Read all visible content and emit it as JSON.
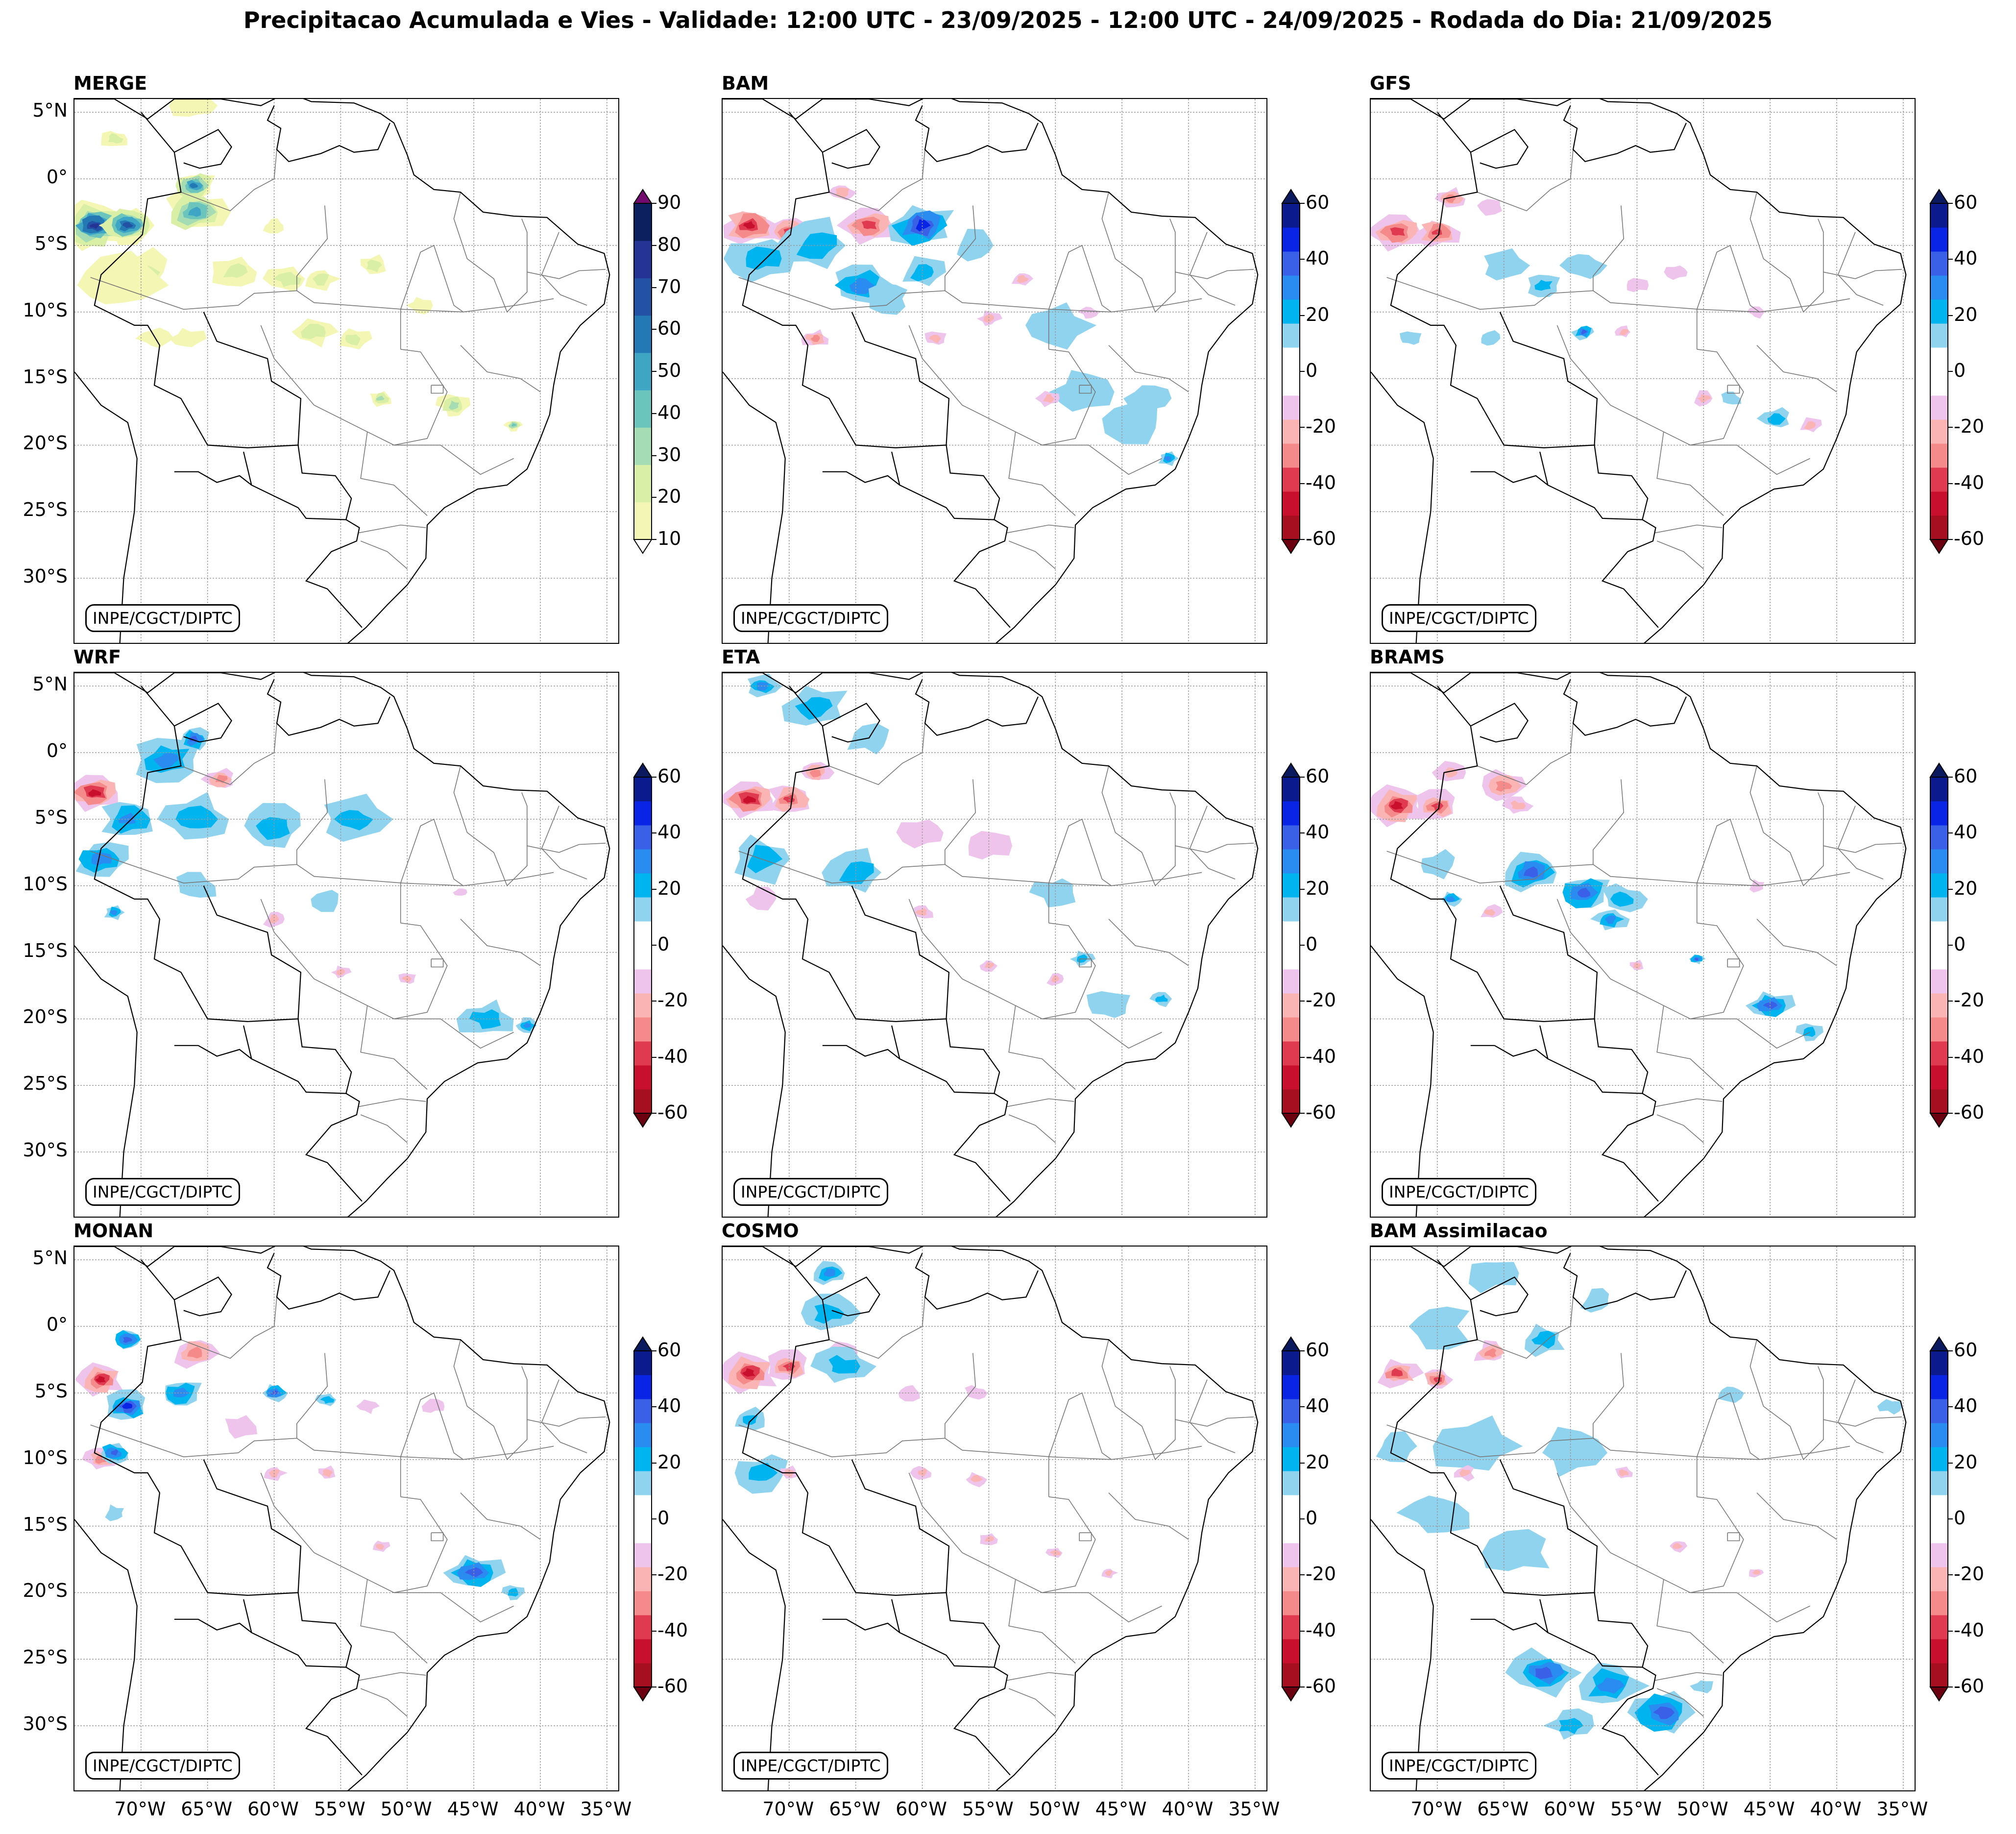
{
  "title": "Precipitacao Acumulada e Vies - Validade: 12:00 UTC - 23/09/2025 - 12:00 UTC - 24/09/2025 - Rodada do Dia: 21/09/2025",
  "credit": "INPE/CGCT/DIPTC",
  "lat_labels": [
    "5°N",
    "0°",
    "5°S",
    "10°S",
    "15°S",
    "20°S",
    "25°S",
    "30°S"
  ],
  "lon_labels": [
    "70°W",
    "65°W",
    "60°W",
    "55°W",
    "50°W",
    "45°W",
    "40°W",
    "35°W"
  ],
  "colorbars": {
    "precip": {
      "levels": [
        "10",
        "20",
        "30",
        "40",
        "50",
        "60",
        "70",
        "80",
        "90"
      ],
      "colors": [
        "#f4f7b3",
        "#d9efa5",
        "#a5dcb4",
        "#6cc5bc",
        "#3ea5c5",
        "#2479b5",
        "#2352a5",
        "#253494",
        "#0c1f5e"
      ],
      "over_color": "#730a6e",
      "under_color": "#ffffff"
    },
    "bias": {
      "levels": [
        "-60",
        "-40",
        "-20",
        "0",
        "20",
        "40",
        "60"
      ],
      "colors": [
        "#a50f1f",
        "#c8102e",
        "#e03a50",
        "#f48a8a",
        "#fbb4b4",
        "#eec4ec",
        "#ffffff",
        "#ffffff",
        "#8fd3ef",
        "#00b4f0",
        "#2a8cf0",
        "#3a60e8",
        "#0a24e6",
        "#0b1a8c"
      ],
      "over_color": "#0b1a5e",
      "under_color": "#6b0010"
    }
  },
  "panels": [
    {
      "name": "MERGE",
      "kind": "precip",
      "cbar": "precip"
    },
    {
      "name": "BAM",
      "kind": "bias",
      "cbar": "bias"
    },
    {
      "name": "GFS",
      "kind": "bias",
      "cbar": "bias"
    },
    {
      "name": "WRF",
      "kind": "bias",
      "cbar": "bias"
    },
    {
      "name": "ETA",
      "kind": "bias",
      "cbar": "bias"
    },
    {
      "name": "BRAMS",
      "kind": "bias",
      "cbar": "bias"
    },
    {
      "name": "MONAN",
      "kind": "bias",
      "cbar": "bias"
    },
    {
      "name": "COSMO",
      "kind": "bias",
      "cbar": "bias"
    },
    {
      "name": "BAM Assimilacao",
      "kind": "bias",
      "cbar": "bias"
    }
  ]
}
